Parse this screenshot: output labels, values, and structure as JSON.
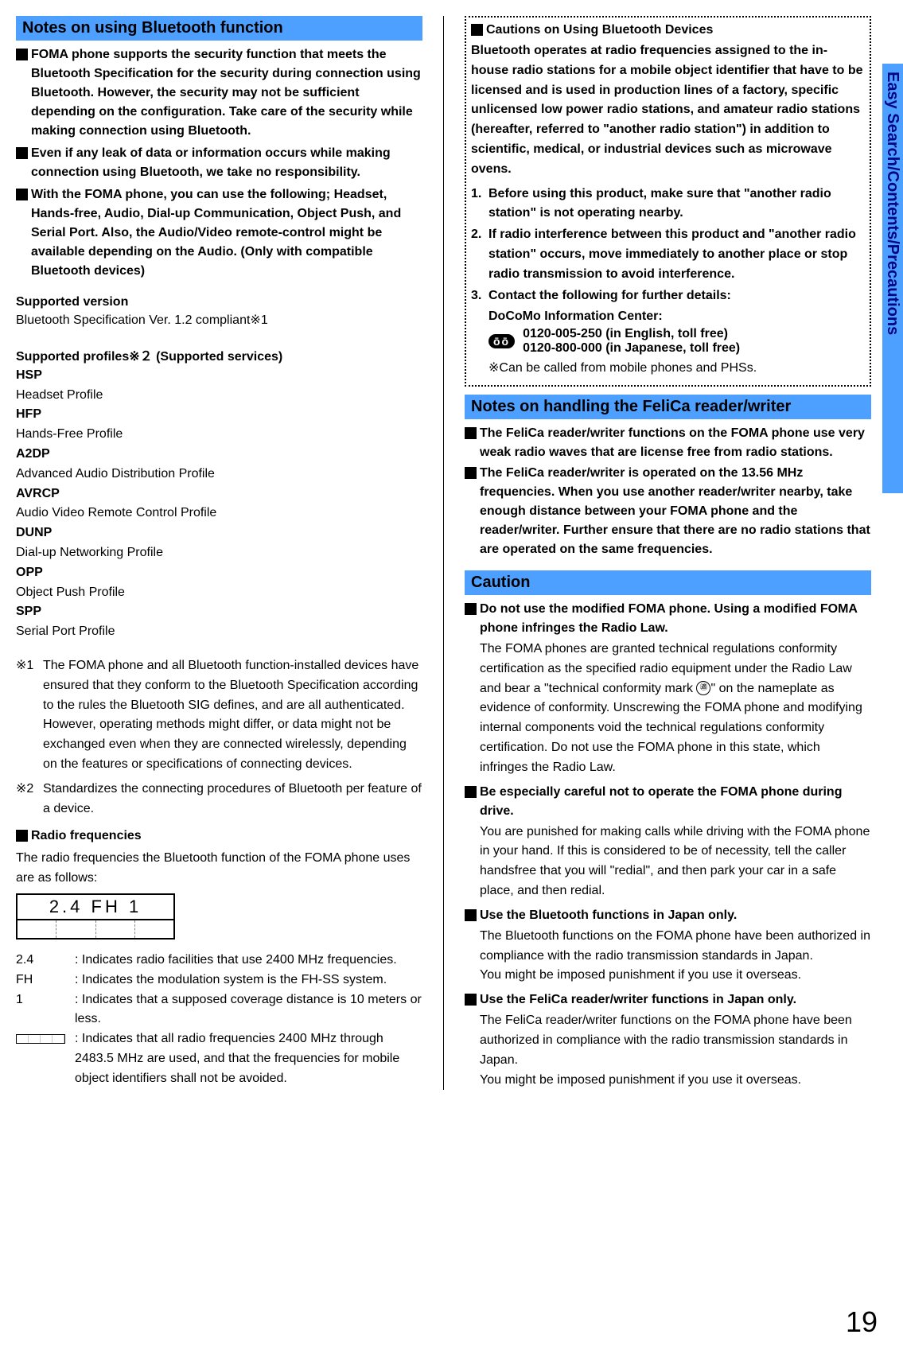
{
  "sidebar": {
    "label": "Easy Search/Contents/Precautions"
  },
  "pageNumber": "19",
  "left": {
    "header1": "Notes on using Bluetooth function",
    "b1": "FOMA phone supports the security function that meets the Bluetooth Specification for the security during connection using Bluetooth. However, the security may not be sufficient depending on the configuration. Take care of the security while making connection using Bluetooth.",
    "b2": "Even if any leak of data or information occurs while making connection using Bluetooth, we take no responsibility.",
    "b3": "With the FOMA phone, you can use the following; Headset, Hands-free, Audio, Dial-up Communication, Object Push, and Serial Port. Also, the Audio/Video remote-control might be available depending on the Audio. (Only with compatible Bluetooth devices)",
    "supportedVersionLabel": "Supported version",
    "supportedVersionText": "Bluetooth Specification Ver. 1.2 compliant",
    "sup1": "※1",
    "profilesLabel": "Supported profiles",
    "sup2": "※２",
    "profilesLabel2": " (Supported services)",
    "profiles": [
      {
        "k": "HSP",
        "v": "Headset Profile"
      },
      {
        "k": "HFP",
        "v": "Hands-Free Profile"
      },
      {
        "k": "A2DP",
        "v": "Advanced Audio Distribution Profile"
      },
      {
        "k": "AVRCP",
        "v": "Audio Video Remote Control Profile"
      },
      {
        "k": "DUNP",
        "v": "Dial-up Networking Profile"
      },
      {
        "k": "OPP",
        "v": "Object Push Profile"
      },
      {
        "k": "SPP",
        "v": "Serial Port Profile"
      }
    ],
    "note1Label": "※1",
    "note1": "The FOMA phone and all Bluetooth function-installed devices have ensured that they conform to the Bluetooth Specification according to the rules the Bluetooth SIG defines, and are all authenticated. However, operating methods might differ, or data might not be exchanged even when they are connected wirelessly, depending on the features or specifications of connecting devices.",
    "note2Label": "※2",
    "note2": "Standardizes the connecting procedures of Bluetooth per feature of a device.",
    "radioHead": "Radio frequencies",
    "radioIntro": "The radio frequencies the Bluetooth function of the FOMA phone uses are as follows:",
    "freqBoxTop": "2.4 FH 1",
    "freqRows": [
      {
        "k": "2.4",
        "v": ": Indicates radio facilities that use 2400 MHz frequencies."
      },
      {
        "k": "FH",
        "v": ": Indicates the modulation system is the FH-SS system."
      },
      {
        "k": "1",
        "v": ": Indicates that a supposed coverage distance is 10 meters or less."
      },
      {
        "k": "__BAR__",
        "v": ": Indicates that all radio frequencies 2400 MHz through 2483.5 MHz are used, and that the frequencies for mobile object identifiers shall not be avoided."
      }
    ]
  },
  "right": {
    "cautHead": "Cautions on Using Bluetooth Devices",
    "cautIntro": "Bluetooth operates at radio frequencies assigned to the in-house radio stations for a mobile object identifier that have to be licensed and is used in production lines of a factory, specific unlicensed low power radio stations, and amateur radio stations (hereafter, referred to \"another radio station\") in addition to scientific, medical, or industrial devices such as microwave ovens.",
    "numList": [
      "Before using this product, make sure that \"another radio station\" is not operating nearby.",
      "If radio interference between this product and \"another radio station\" occurs, move immediately to another place or stop radio transmission to avoid interference.",
      "Contact the following for further details:"
    ],
    "docomoLabel": "DoCoMo Information Center:",
    "phoneIcon": "ōō",
    "phone1": "0120-005-250 (in English, toll free)",
    "phone2": "0120-800-000 (in Japanese, toll free)",
    "phoneNote": "※Can be called from mobile phones and PHSs.",
    "header2": "Notes on handling the FeliCa reader/writer",
    "f1": "The FeliCa reader/writer functions on the FOMA phone use very weak radio waves that are license free from radio stations.",
    "f2": "The FeliCa reader/writer is operated on the 13.56 MHz frequencies. When you use another reader/writer nearby, take enough distance between your FOMA phone and the reader/writer. Further ensure that there are no radio stations that are operated on the same frequencies.",
    "header3": "Caution",
    "c1h": "Do not use the modified FOMA phone. Using a modified FOMA phone infringes the Radio Law.",
    "c1a": "The FOMA phones are granted technical regulations conformity certification as the specified radio equipment under the Radio Law and bear a \"technical conformity mark ",
    "c1b": "\" on the nameplate as evidence of conformity. Unscrewing the FOMA phone and modifying internal components void the technical regulations conformity certification. Do not use the FOMA phone in this state, which infringes the Radio Law.",
    "c2h": "Be especially careful not to operate the FOMA phone during drive.",
    "c2": "You are punished for making calls while driving with the FOMA phone in your hand. If this is considered to be of necessity, tell the caller handsfree that you will \"redial\", and then park your car in a safe place, and then redial.",
    "c3h": "Use the Bluetooth functions in Japan only.",
    "c3": "The Bluetooth functions on the FOMA phone have been authorized in compliance with the radio transmission standards in Japan.",
    "c3b": "You might be imposed punishment if you use it overseas.",
    "c4h": "Use the FeliCa reader/writer functions in Japan only.",
    "c4": "The FeliCa reader/writer functions on the FOMA phone have been authorized in compliance with the radio transmission standards in Japan.",
    "c4b": "You might be imposed punishment if you use it overseas."
  }
}
